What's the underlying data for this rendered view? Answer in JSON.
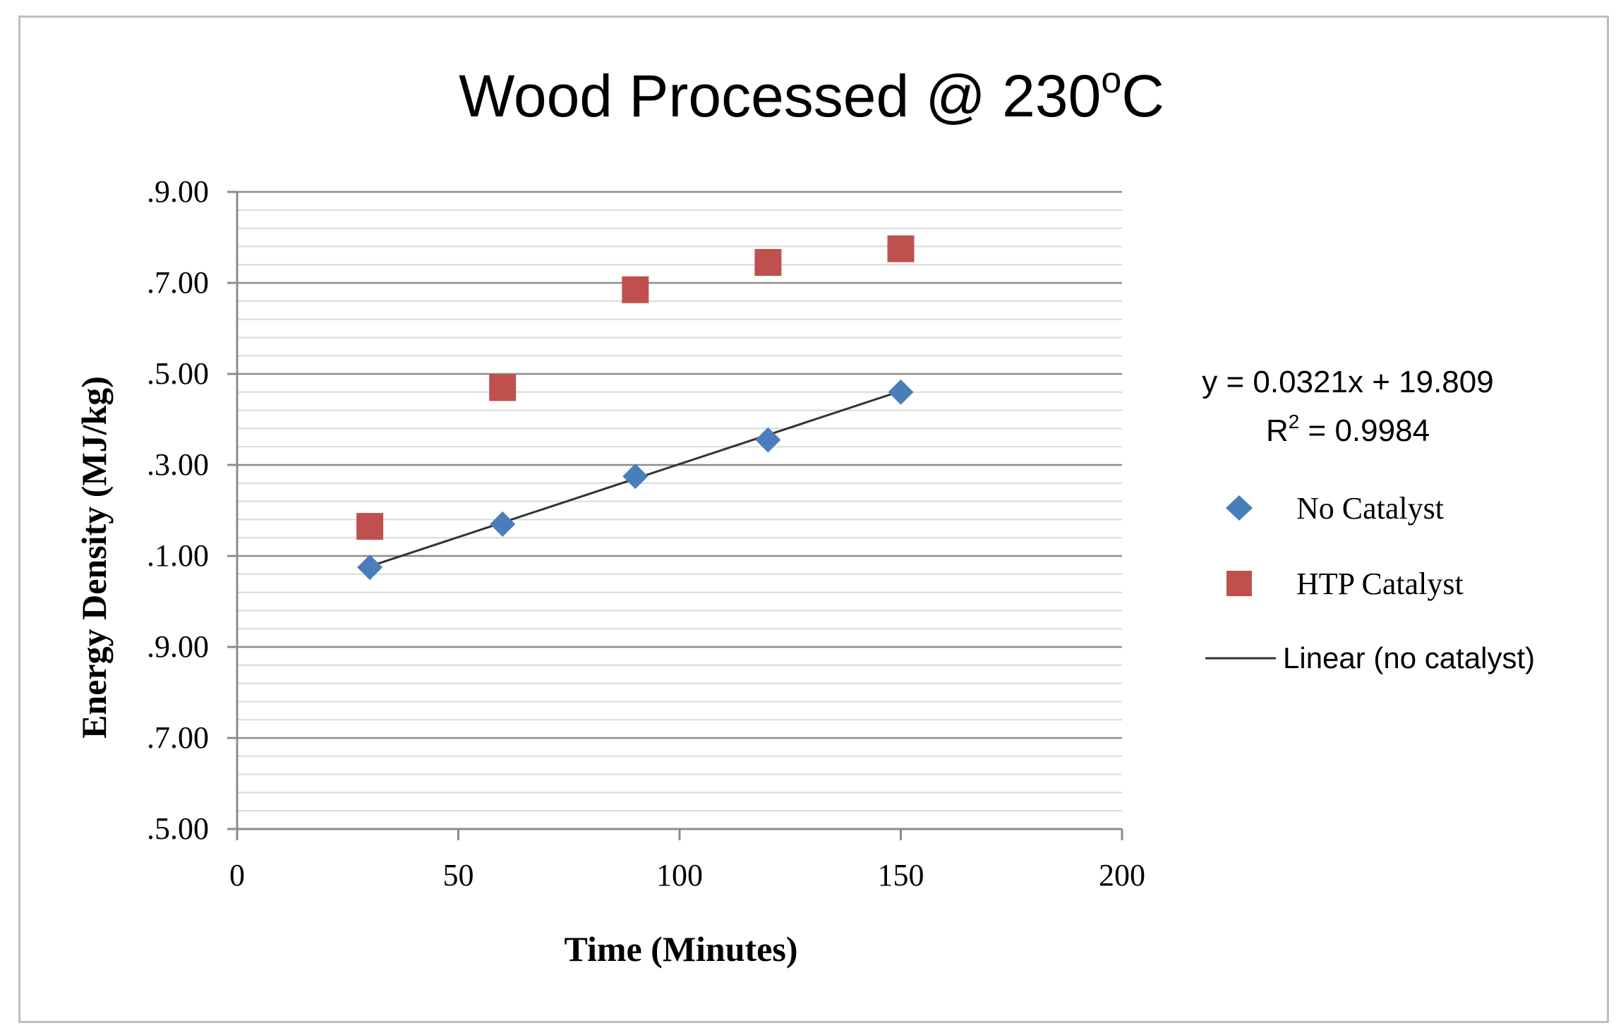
{
  "chart_data": {
    "type": "scatter",
    "title_main": "Wood Processed @ 230",
    "title_sup": "o",
    "title_end": "C",
    "xlabel": "Time (Minutes)",
    "ylabel": "Energy Density (MJ/kg)",
    "xlim": [
      0,
      200
    ],
    "ylim": [
      15,
      29
    ],
    "x_ticks": [
      0,
      50,
      100,
      150,
      200
    ],
    "y_ticks": [
      15,
      17,
      19,
      21,
      23,
      25,
      27,
      29
    ],
    "y_tick_labels": [
      ".5.00",
      ".7.00",
      ".9.00",
      ".1.00",
      ".3.00",
      ".5.00",
      ".7.00",
      ".9.00"
    ],
    "minor_gridline_step": 0.4,
    "grid": true,
    "series": [
      {
        "name": "No Catalyst",
        "marker": "diamond",
        "color": "#4a7ebb",
        "x": [
          30,
          60,
          90,
          120,
          150
        ],
        "y": [
          20.75,
          21.7,
          22.75,
          23.55,
          24.6
        ]
      },
      {
        "name": "HTP Catalyst",
        "marker": "square",
        "color": "#c0504d",
        "x": [
          30,
          60,
          90,
          120,
          150
        ],
        "y": [
          21.65,
          24.7,
          26.85,
          27.45,
          27.75
        ]
      }
    ],
    "trendline": {
      "name": "Linear (no catalyst)",
      "color": "#333333",
      "slope": 0.0321,
      "intercept": 19.809,
      "x_range": [
        30,
        150
      ]
    },
    "equation": {
      "line1": "y = 0.0321x + 19.809",
      "r2_prefix": "R",
      "r2_sup": "2",
      "r2_suffix": " = 0.9984"
    },
    "legend_position": "right"
  }
}
